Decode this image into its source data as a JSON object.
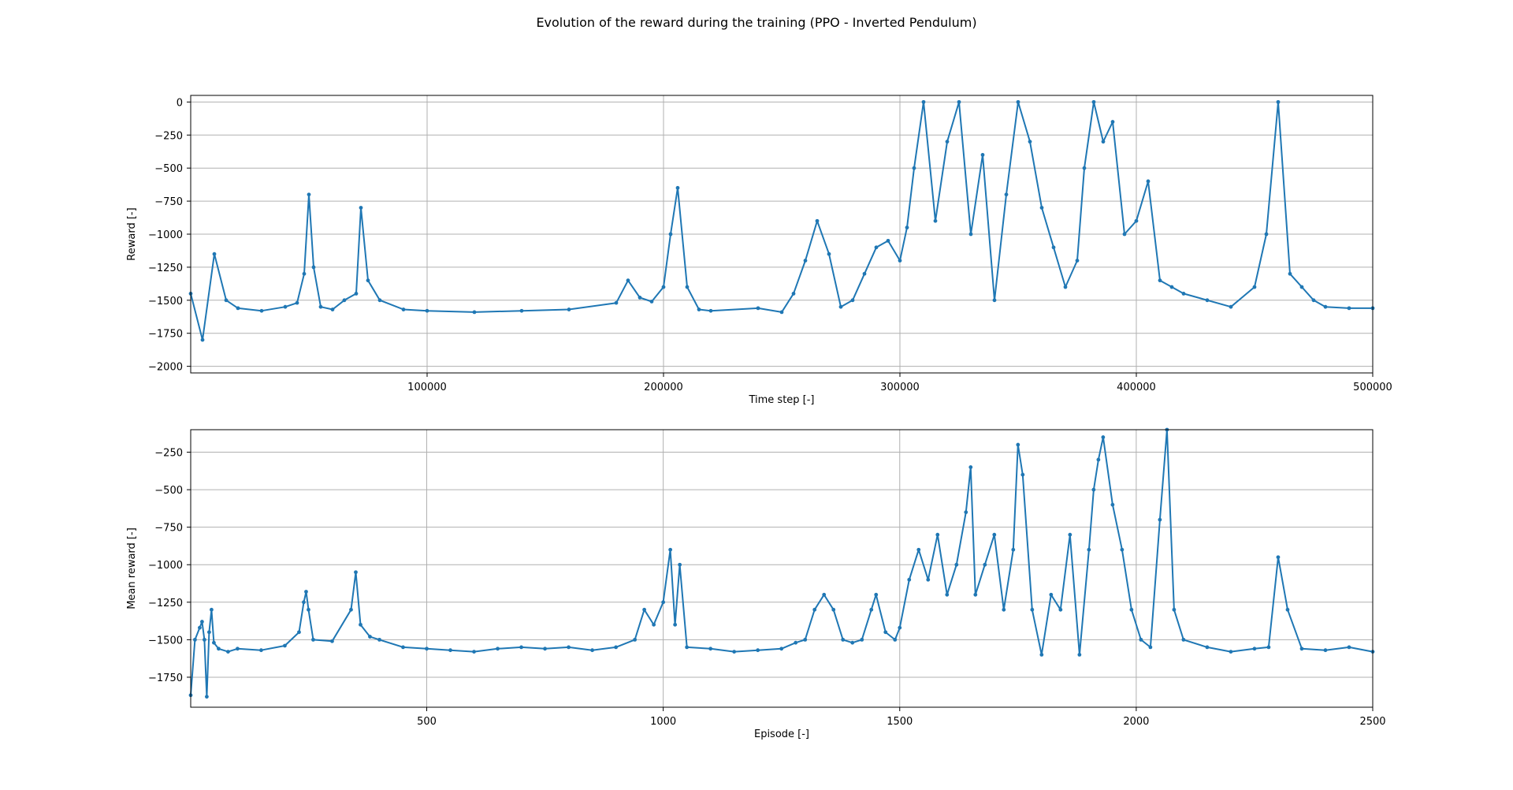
{
  "figure": {
    "suptitle": "Evolution of the reward during the training (PPO - Inverted Pendulum)"
  },
  "colors": {
    "series": "#1f77b4",
    "grid": "#b0b0b0",
    "axes": "#000000",
    "background": "#ffffff"
  },
  "chart_data": [
    {
      "type": "line",
      "title": "",
      "xlabel": "Time step [-]",
      "ylabel": "Reward [-]",
      "xlim": [
        1,
        500000
      ],
      "ylim": [
        -2050,
        50
      ],
      "xticks": [
        100000,
        200000,
        300000,
        400000,
        500000
      ],
      "xtick_labels": [
        "100000",
        "200000",
        "300000",
        "400000",
        "500000"
      ],
      "yticks": [
        0,
        -250,
        -500,
        -750,
        -1000,
        -1250,
        -1500,
        -1750,
        -2000
      ],
      "ytick_labels": [
        "0",
        "−250",
        "−500",
        "−750",
        "−1000",
        "−1250",
        "−1500",
        "−1750",
        "−2000"
      ],
      "grid": true,
      "marker": "dot",
      "series": [
        {
          "x": [
            0,
            5000,
            10000,
            15000,
            20000,
            30000,
            40000,
            45000,
            48000,
            50000,
            52000,
            55000,
            60000,
            65000,
            70000,
            72000,
            75000,
            80000,
            90000,
            100000,
            120000,
            140000,
            160000,
            180000,
            185000,
            190000,
            195000,
            200000,
            203000,
            206000,
            210000,
            215000,
            220000,
            240000,
            250000,
            255000,
            260000,
            265000,
            270000,
            275000,
            280000,
            285000,
            290000,
            295000,
            300000,
            303000,
            306000,
            310000,
            315000,
            320000,
            325000,
            330000,
            335000,
            340000,
            345000,
            350000,
            355000,
            360000,
            365000,
            370000,
            375000,
            378000,
            382000,
            386000,
            390000,
            395000,
            400000,
            405000,
            410000,
            415000,
            420000,
            430000,
            440000,
            450000,
            455000,
            460000,
            465000,
            470000,
            475000,
            480000,
            490000,
            500000
          ],
          "y": [
            -1450,
            -1800,
            -1150,
            -1500,
            -1560,
            -1580,
            -1550,
            -1520,
            -1300,
            -700,
            -1250,
            -1550,
            -1570,
            -1500,
            -1450,
            -800,
            -1350,
            -1500,
            -1570,
            -1580,
            -1590,
            -1580,
            -1570,
            -1520,
            -1350,
            -1480,
            -1510,
            -1400,
            -1000,
            -650,
            -1400,
            -1570,
            -1580,
            -1560,
            -1590,
            -1450,
            -1200,
            -900,
            -1150,
            -1550,
            -1500,
            -1300,
            -1100,
            -1050,
            -1200,
            -950,
            -500,
            0,
            -900,
            -300,
            0,
            -1000,
            -400,
            -1500,
            -700,
            0,
            -300,
            -800,
            -1100,
            -1400,
            -1200,
            -500,
            0,
            -300,
            -150,
            -1000,
            -900,
            -600,
            -1350,
            -1400,
            -1450,
            -1500,
            -1550,
            -1400,
            -1000,
            0,
            -1300,
            -1400,
            -1500,
            -1550,
            -1560,
            -1560
          ]
        }
      ]
    },
    {
      "type": "line",
      "title": "",
      "xlabel": "Episode [-]",
      "ylabel": "Mean reward [-]",
      "xlim": [
        1,
        2500
      ],
      "ylim": [
        -1950,
        -100
      ],
      "xticks": [
        500,
        1000,
        1500,
        2000,
        2500
      ],
      "xtick_labels": [
        "500",
        "1000",
        "1500",
        "2000",
        "2500"
      ],
      "yticks": [
        -250,
        -500,
        -750,
        -1000,
        -1250,
        -1500,
        -1750
      ],
      "ytick_labels": [
        "−250",
        "−500",
        "−750",
        "−1000",
        "−1250",
        "−1500",
        "−1750"
      ],
      "grid": true,
      "marker": "dot",
      "series": [
        {
          "x": [
            1,
            10,
            20,
            25,
            30,
            35,
            40,
            45,
            50,
            60,
            80,
            100,
            150,
            200,
            230,
            240,
            245,
            250,
            260,
            300,
            340,
            350,
            360,
            380,
            400,
            450,
            500,
            550,
            600,
            650,
            700,
            750,
            800,
            850,
            900,
            940,
            960,
            980,
            1000,
            1015,
            1025,
            1035,
            1050,
            1100,
            1150,
            1200,
            1250,
            1280,
            1300,
            1320,
            1340,
            1360,
            1380,
            1400,
            1420,
            1440,
            1450,
            1470,
            1490,
            1500,
            1520,
            1540,
            1560,
            1580,
            1600,
            1620,
            1640,
            1650,
            1660,
            1680,
            1700,
            1720,
            1740,
            1750,
            1760,
            1780,
            1800,
            1820,
            1840,
            1860,
            1880,
            1900,
            1910,
            1920,
            1930,
            1950,
            1970,
            1990,
            2010,
            2030,
            2050,
            2065,
            2080,
            2100,
            2150,
            2200,
            2250,
            2280,
            2300,
            2320,
            2350,
            2400,
            2450,
            2500
          ],
          "y": [
            -1870,
            -1500,
            -1420,
            -1380,
            -1500,
            -1880,
            -1450,
            -1300,
            -1520,
            -1560,
            -1580,
            -1560,
            -1570,
            -1540,
            -1450,
            -1250,
            -1180,
            -1300,
            -1500,
            -1510,
            -1300,
            -1050,
            -1400,
            -1480,
            -1500,
            -1550,
            -1560,
            -1570,
            -1580,
            -1560,
            -1550,
            -1560,
            -1550,
            -1570,
            -1550,
            -1500,
            -1300,
            -1400,
            -1250,
            -900,
            -1400,
            -1000,
            -1550,
            -1560,
            -1580,
            -1570,
            -1560,
            -1520,
            -1500,
            -1300,
            -1200,
            -1300,
            -1500,
            -1520,
            -1500,
            -1300,
            -1200,
            -1450,
            -1500,
            -1420,
            -1100,
            -900,
            -1100,
            -800,
            -1200,
            -1000,
            -650,
            -350,
            -1200,
            -1000,
            -800,
            -1300,
            -900,
            -200,
            -400,
            -1300,
            -1600,
            -1200,
            -1300,
            -800,
            -1600,
            -900,
            -500,
            -300,
            -150,
            -600,
            -900,
            -1300,
            -1500,
            -1550,
            -700,
            -100,
            -1300,
            -1500,
            -1550,
            -1580,
            -1560,
            -1550,
            -950,
            -1300,
            -1560,
            -1570,
            -1550,
            -1580
          ]
        }
      ]
    }
  ]
}
